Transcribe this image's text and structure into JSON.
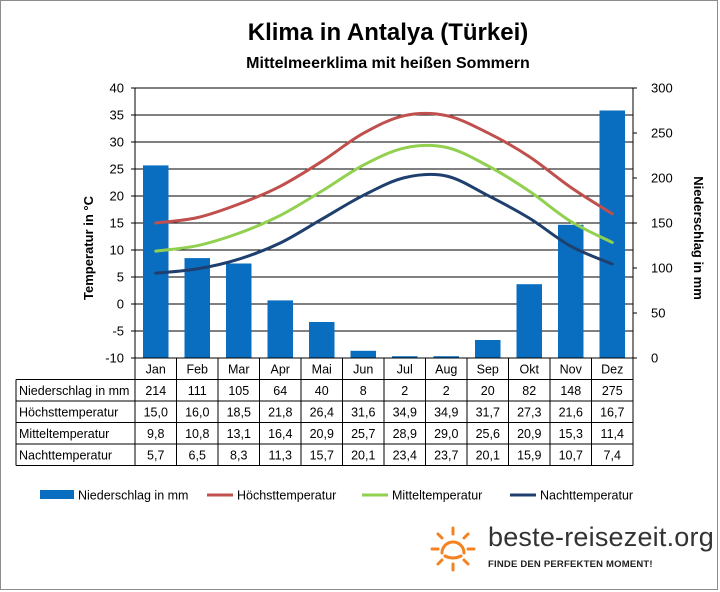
{
  "chart_data": {
    "type": "bar+line",
    "title": "Klima in Antalya (Türkei)",
    "subtitle": "Mittelmeerklima mit heißen Sommern",
    "categories": [
      "Jan",
      "Feb",
      "Mar",
      "Apr",
      "Mai",
      "Jun",
      "Jul",
      "Aug",
      "Sep",
      "Okt",
      "Nov",
      "Dez"
    ],
    "y_left": {
      "label": "Temperatur in °C",
      "ylim": [
        -10,
        40
      ],
      "ticks": [
        "40",
        "35",
        "30",
        "25",
        "20",
        "15",
        "10",
        "5",
        "0",
        "-5",
        "-10"
      ]
    },
    "y_right": {
      "label": "Niederschlag in mm",
      "ylim": [
        0,
        300
      ],
      "ticks": [
        "300",
        "250",
        "200",
        "150",
        "100",
        "50",
        "0"
      ]
    },
    "series": [
      {
        "name": "Niederschlag in mm",
        "axis": "right",
        "kind": "bar",
        "color": "#0A6EC0",
        "values": [
          214,
          111,
          105,
          64,
          40,
          8,
          2,
          2,
          20,
          82,
          148,
          275
        ],
        "display": [
          "214",
          "111",
          "105",
          "64",
          "40",
          "8",
          "2",
          "2",
          "20",
          "82",
          "148",
          "275"
        ]
      },
      {
        "name": "Höchsttemperatur",
        "axis": "left",
        "kind": "line",
        "color": "#C0504D",
        "values": [
          15.0,
          16.0,
          18.5,
          21.8,
          26.4,
          31.6,
          34.9,
          34.9,
          31.7,
          27.3,
          21.6,
          16.7
        ],
        "display": [
          "15,0",
          "16,0",
          "18,5",
          "21,8",
          "26,4",
          "31,6",
          "34,9",
          "34,9",
          "31,7",
          "27,3",
          "21,6",
          "16,7"
        ]
      },
      {
        "name": "Mitteltemperatur",
        "axis": "left",
        "kind": "line",
        "color": "#92D050",
        "values": [
          9.8,
          10.8,
          13.1,
          16.4,
          20.9,
          25.7,
          28.9,
          29.0,
          25.6,
          20.9,
          15.3,
          11.4
        ],
        "display": [
          "9,8",
          "10,8",
          "13,1",
          "16,4",
          "20,9",
          "25,7",
          "28,9",
          "29,0",
          "25,6",
          "20,9",
          "15,3",
          "11,4"
        ]
      },
      {
        "name": "Nachttemperatur",
        "axis": "left",
        "kind": "line",
        "color": "#1F3F6E",
        "values": [
          5.7,
          6.5,
          8.3,
          11.3,
          15.7,
          20.1,
          23.4,
          23.7,
          20.1,
          15.9,
          10.7,
          7.4
        ],
        "display": [
          "5,7",
          "6,5",
          "8,3",
          "11,3",
          "15,7",
          "20,1",
          "23,4",
          "23,7",
          "20,1",
          "15,9",
          "10,7",
          "7,4"
        ]
      }
    ],
    "grid": true,
    "legend": "bottom"
  },
  "branding": {
    "name": "beste-reisezeit.org",
    "tagline": "FINDE DEN PERFEKTEN MOMENT!",
    "icon": "sun-icon",
    "accent": "#F58220"
  }
}
